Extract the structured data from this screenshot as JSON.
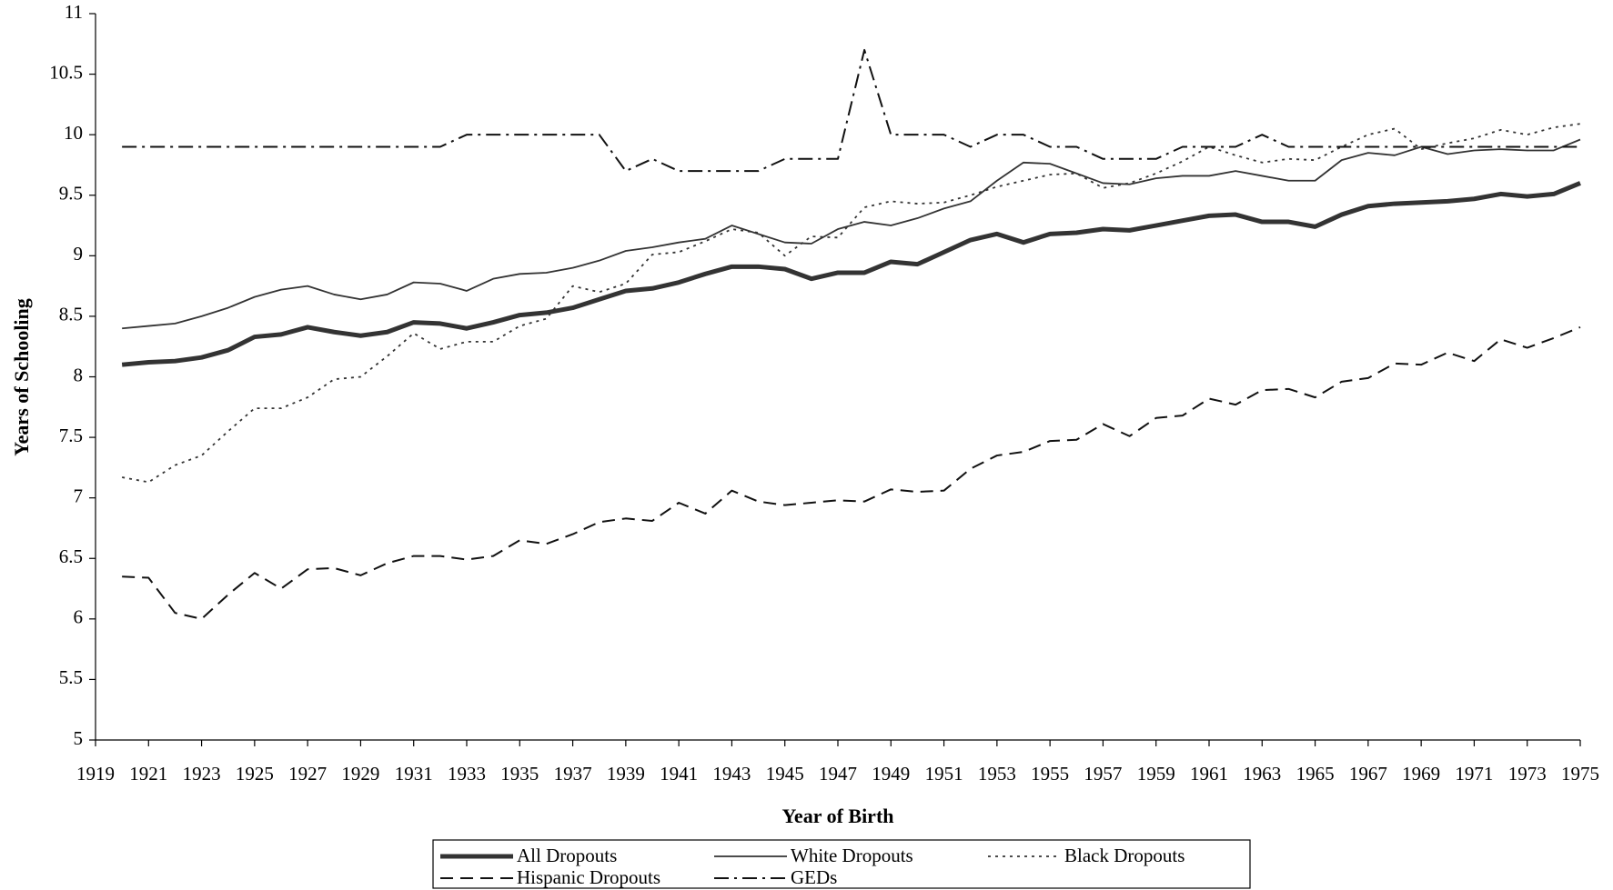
{
  "chart_data": {
    "type": "line",
    "xlabel": "Year of Birth",
    "ylabel": "Years of Schooling",
    "x": [
      1920,
      1921,
      1922,
      1923,
      1924,
      1925,
      1926,
      1927,
      1928,
      1929,
      1930,
      1931,
      1932,
      1933,
      1934,
      1935,
      1936,
      1937,
      1938,
      1939,
      1940,
      1941,
      1942,
      1943,
      1944,
      1945,
      1946,
      1947,
      1948,
      1949,
      1950,
      1951,
      1952,
      1953,
      1954,
      1955,
      1956,
      1957,
      1958,
      1959,
      1960,
      1961,
      1962,
      1963,
      1964,
      1965,
      1966,
      1967,
      1968,
      1969,
      1970,
      1971,
      1972,
      1973,
      1974,
      1975
    ],
    "xlim": [
      1919,
      1975
    ],
    "xticks": [
      1919,
      1921,
      1923,
      1925,
      1927,
      1929,
      1931,
      1933,
      1935,
      1937,
      1939,
      1941,
      1943,
      1945,
      1947,
      1949,
      1951,
      1953,
      1955,
      1957,
      1959,
      1961,
      1963,
      1965,
      1967,
      1969,
      1971,
      1973,
      1975
    ],
    "ylim": [
      5,
      11
    ],
    "yticks": [
      5,
      5.5,
      6,
      6.5,
      7,
      7.5,
      8,
      8.5,
      9,
      9.5,
      10,
      10.5,
      11
    ],
    "grid": false,
    "series": [
      {
        "name": "All Dropouts",
        "color": "#333333",
        "style": "solid",
        "line_width": 5,
        "values": [
          8.1,
          8.12,
          8.13,
          8.16,
          8.22,
          8.33,
          8.35,
          8.41,
          8.37,
          8.34,
          8.37,
          8.45,
          8.44,
          8.4,
          8.45,
          8.51,
          8.53,
          8.57,
          8.64,
          8.71,
          8.73,
          8.78,
          8.85,
          8.91,
          8.91,
          8.89,
          8.81,
          8.86,
          8.86,
          8.95,
          8.93,
          9.03,
          9.13,
          9.18,
          9.11,
          9.18,
          9.19,
          9.22,
          9.21,
          9.25,
          9.29,
          9.33,
          9.34,
          9.28,
          9.28,
          9.24,
          9.34,
          9.41,
          9.43,
          9.44,
          9.45,
          9.47,
          9.51,
          9.49,
          9.51,
          9.6
        ]
      },
      {
        "name": "White Dropouts",
        "color": "#333333",
        "style": "solid",
        "line_width": 1.8,
        "values": [
          8.4,
          8.42,
          8.44,
          8.5,
          8.57,
          8.66,
          8.72,
          8.75,
          8.68,
          8.64,
          8.68,
          8.78,
          8.77,
          8.71,
          8.81,
          8.85,
          8.86,
          8.9,
          8.96,
          9.04,
          9.07,
          9.11,
          9.14,
          9.25,
          9.18,
          9.11,
          9.1,
          9.22,
          9.28,
          9.25,
          9.31,
          9.39,
          9.45,
          9.62,
          9.77,
          9.76,
          9.68,
          9.6,
          9.59,
          9.64,
          9.66,
          9.66,
          9.7,
          9.66,
          9.62,
          9.62,
          9.79,
          9.85,
          9.83,
          9.9,
          9.84,
          9.87,
          9.88,
          9.87,
          9.87,
          9.96
        ]
      },
      {
        "name": "Black Dropouts",
        "color": "#333333",
        "style": "dotted",
        "line_width": 1.8,
        "values": [
          7.17,
          7.13,
          7.27,
          7.35,
          7.55,
          7.74,
          7.74,
          7.83,
          7.98,
          8.0,
          8.17,
          8.36,
          8.23,
          8.29,
          8.29,
          8.42,
          8.48,
          8.75,
          8.7,
          8.77,
          9.01,
          9.03,
          9.12,
          9.22,
          9.19,
          9.0,
          9.16,
          9.15,
          9.4,
          9.45,
          9.43,
          9.44,
          9.5,
          9.57,
          9.62,
          9.67,
          9.68,
          9.56,
          9.6,
          9.68,
          9.78,
          9.9,
          9.83,
          9.77,
          9.8,
          9.79,
          9.9,
          10.0,
          10.05,
          9.88,
          9.93,
          9.97,
          10.04,
          10.0,
          10.06,
          10.09
        ]
      },
      {
        "name": "Hispanic Dropouts",
        "color": "#111111",
        "style": "dashed",
        "line_width": 2,
        "values": [
          6.35,
          6.34,
          6.05,
          6.0,
          6.2,
          6.38,
          6.25,
          6.41,
          6.42,
          6.36,
          6.46,
          6.52,
          6.52,
          6.49,
          6.52,
          6.65,
          6.62,
          6.7,
          6.8,
          6.83,
          6.81,
          6.96,
          6.87,
          7.06,
          6.97,
          6.94,
          6.96,
          6.98,
          6.97,
          7.07,
          7.05,
          7.06,
          7.24,
          7.35,
          7.38,
          7.47,
          7.48,
          7.61,
          7.51,
          7.66,
          7.68,
          7.82,
          7.77,
          7.89,
          7.9,
          7.83,
          7.96,
          7.99,
          8.11,
          8.1,
          8.2,
          8.13,
          8.31,
          8.24,
          8.32,
          8.41
        ]
      },
      {
        "name": "GEDs",
        "color": "#111111",
        "style": "dash-dot",
        "line_width": 2,
        "values": [
          9.9,
          9.9,
          9.9,
          9.9,
          9.9,
          9.9,
          9.9,
          9.9,
          9.9,
          9.9,
          9.9,
          9.9,
          9.9,
          10.0,
          10.0,
          10.0,
          10.0,
          10.0,
          10.0,
          9.7,
          9.8,
          9.7,
          9.7,
          9.7,
          9.7,
          9.8,
          9.8,
          9.8,
          10.7,
          10.0,
          10.0,
          10.0,
          9.9,
          10.0,
          10.0,
          9.9,
          9.9,
          9.8,
          9.8,
          9.8,
          9.9,
          9.9,
          9.9,
          10.0,
          9.9,
          9.9,
          9.9,
          9.9,
          9.9,
          9.9,
          9.9,
          9.9,
          9.9,
          9.9,
          9.9,
          9.9
        ]
      }
    ]
  }
}
